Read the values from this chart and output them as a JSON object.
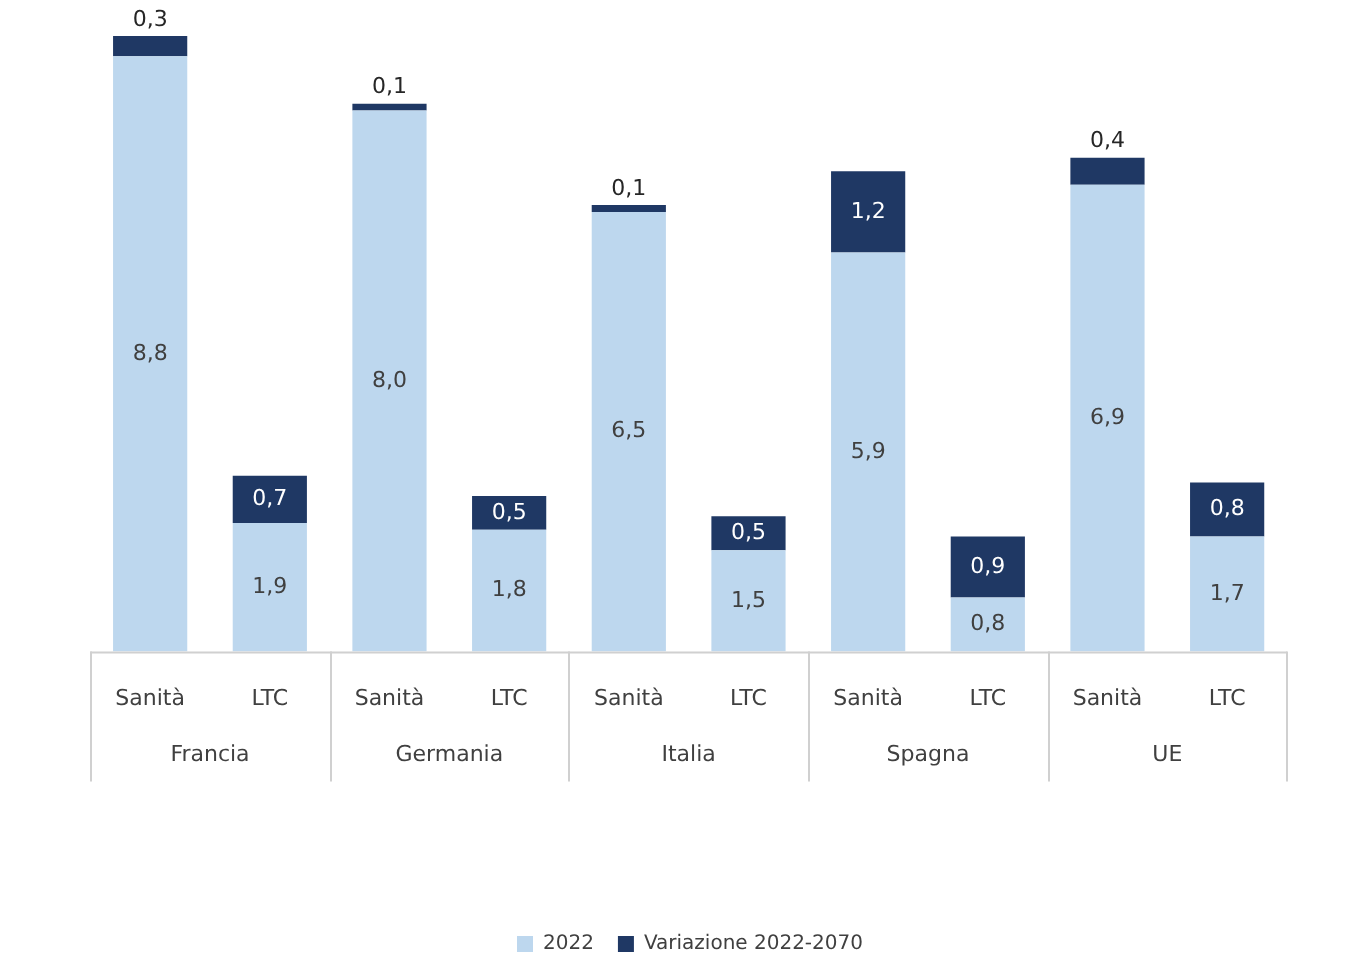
{
  "chart_data": {
    "type": "bar",
    "stacked": true,
    "legend": "bottom",
    "ylim": [
      0,
      9.1
    ],
    "categories": [
      "Sanità",
      "LTC",
      "Sanità",
      "LTC",
      "Sanità",
      "LTC",
      "Sanità",
      "LTC",
      "Sanità",
      "LTC"
    ],
    "annotations": [
      "Francia",
      "Germania",
      "Italia",
      "Spagna",
      "UE"
    ],
    "series": [
      {
        "name": "2022",
        "color": "#bdd7ee",
        "values": [
          8.8,
          1.9,
          8.0,
          1.8,
          6.5,
          1.5,
          5.9,
          0.8,
          6.9,
          1.7
        ],
        "value_labels": [
          "8,8",
          "1,9",
          "8,0",
          "1,8",
          "6,5",
          "1,5",
          "5,9",
          "0,8",
          "6,9",
          "1,7"
        ]
      },
      {
        "name": "Variazione 2022-2070",
        "color": "#1f3864",
        "values": [
          0.3,
          0.7,
          0.1,
          0.5,
          0.1,
          0.5,
          1.2,
          0.9,
          0.4,
          0.8
        ],
        "value_labels": [
          "0,3",
          "0,7",
          "0,1",
          "0,5",
          "0,1",
          "0,5",
          "1,2",
          "0,9",
          "0,4",
          "0,8"
        ]
      }
    ]
  }
}
